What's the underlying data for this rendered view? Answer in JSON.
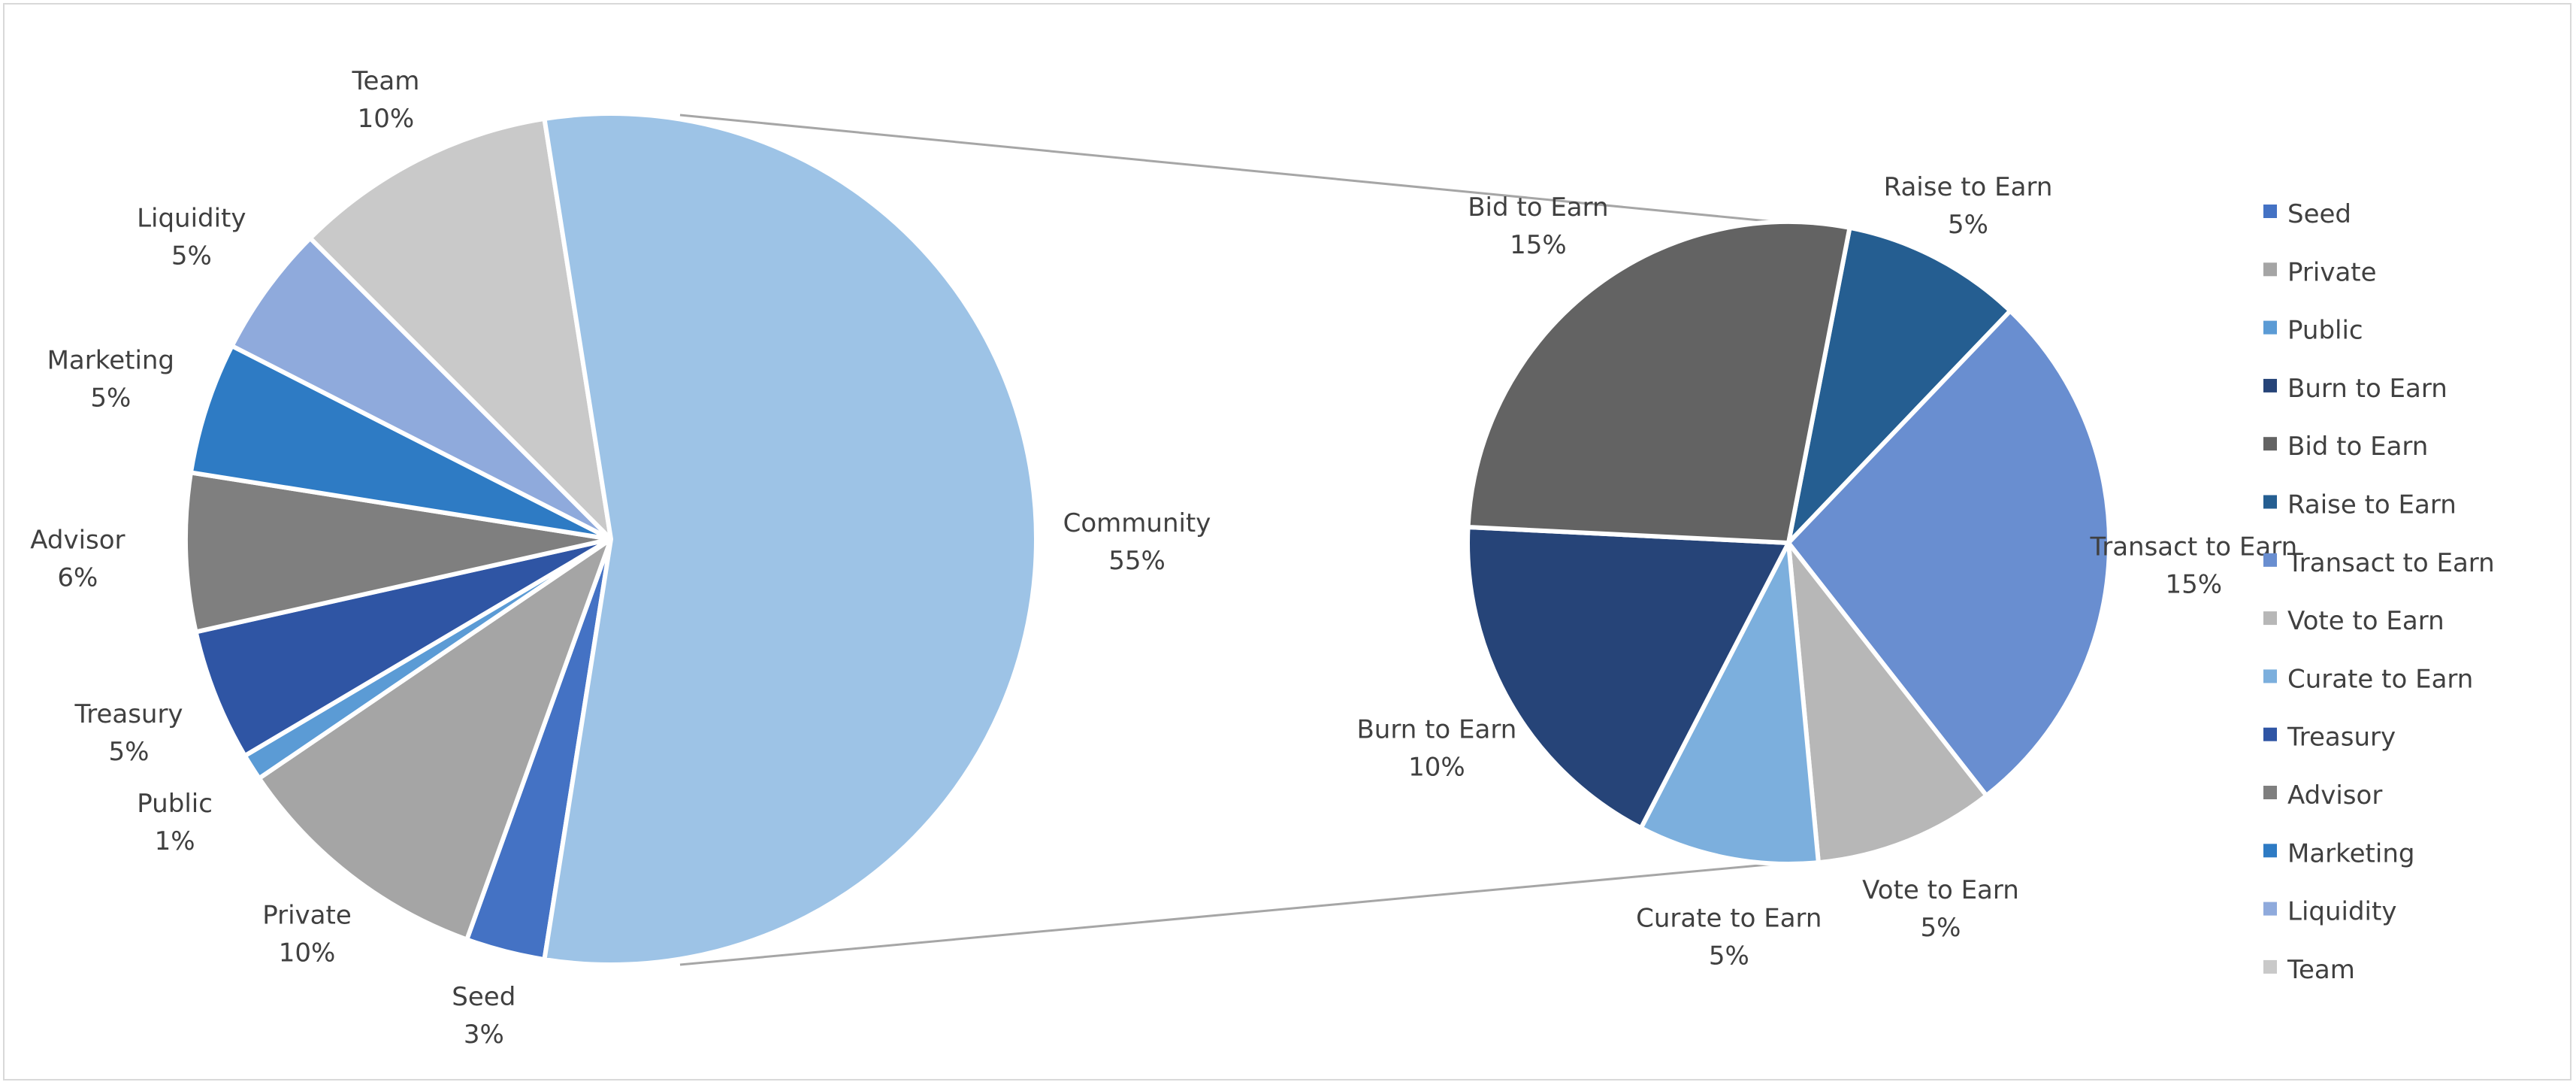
{
  "chart_data": {
    "type": "pie",
    "subtype": "pie-of-pie",
    "title": "",
    "main_pie": [
      {
        "name": "Seed",
        "value": 3,
        "label": "3%",
        "color": "#4472C4"
      },
      {
        "name": "Private",
        "value": 10,
        "label": "10%",
        "color": "#A5A5A5"
      },
      {
        "name": "Public",
        "value": 1,
        "label": "1%",
        "color": "#5B9BD5"
      },
      {
        "name": "Treasury",
        "value": 5,
        "label": "5%",
        "color": "#2F55A4"
      },
      {
        "name": "Advisor",
        "value": 6,
        "label": "6%",
        "color": "#7F7F7F"
      },
      {
        "name": "Marketing",
        "value": 5,
        "label": "5%",
        "color": "#2E7BC4"
      },
      {
        "name": "Liquidity",
        "value": 5,
        "label": "5%",
        "color": "#8FAADC"
      },
      {
        "name": "Team",
        "value": 10,
        "label": "10%",
        "color": "#C9C9C9"
      },
      {
        "name": "Community",
        "value": 55,
        "label": "55%",
        "color": "#9DC3E6"
      }
    ],
    "secondary_pie": [
      {
        "name": "Raise to Earn",
        "value": 5,
        "label": "5%",
        "color": "#255E91"
      },
      {
        "name": "Transact to Earn",
        "value": 15,
        "label": "15%",
        "color": "#698ED0"
      },
      {
        "name": "Vote to Earn",
        "value": 5,
        "label": "5%",
        "color": "#B7B7B7"
      },
      {
        "name": "Curate to Earn",
        "value": 5,
        "label": "5%",
        "color": "#7CAFDD"
      },
      {
        "name": "Burn to Earn",
        "value": 10,
        "label": "10%",
        "color": "#264478"
      },
      {
        "name": "Bid to Earn",
        "value": 15,
        "label": "15%",
        "color": "#636363"
      }
    ],
    "legend_position": "right",
    "legend": [
      {
        "name": "Seed",
        "color": "#4472C4"
      },
      {
        "name": "Private",
        "color": "#A5A5A5"
      },
      {
        "name": "Public",
        "color": "#5B9BD5"
      },
      {
        "name": "Burn to Earn",
        "color": "#264478"
      },
      {
        "name": "Bid to Earn",
        "color": "#636363"
      },
      {
        "name": "Raise to Earn",
        "color": "#255E91"
      },
      {
        "name": "Transact to Earn",
        "color": "#698ED0"
      },
      {
        "name": "Vote to Earn",
        "color": "#B7B7B7"
      },
      {
        "name": "Curate to Earn",
        "color": "#7CAFDD"
      },
      {
        "name": "Treasury",
        "color": "#2F55A4"
      },
      {
        "name": "Advisor",
        "color": "#7F7F7F"
      },
      {
        "name": "Marketing",
        "color": "#2E7BC4"
      },
      {
        "name": "Liquidity",
        "color": "#8FAADC"
      },
      {
        "name": "Team",
        "color": "#C9C9C9"
      }
    ]
  }
}
